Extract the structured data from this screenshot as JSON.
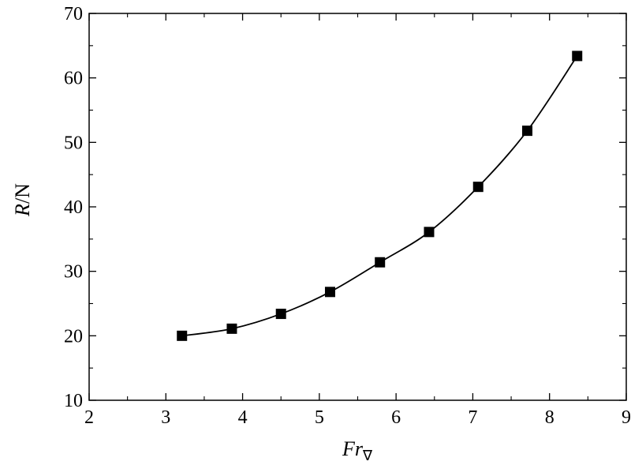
{
  "chart_data": {
    "type": "line",
    "title": "",
    "xlabel": {
      "main": "Fr",
      "subscript": "∇"
    },
    "ylabel": {
      "italic": "R",
      "rest": "/N"
    },
    "xlim": [
      2,
      9
    ],
    "ylim": [
      10,
      70
    ],
    "xticks": [
      "2",
      "3",
      "4",
      "5",
      "6",
      "7",
      "8",
      "9"
    ],
    "yticks": [
      "10",
      "20",
      "30",
      "40",
      "50",
      "60",
      "70"
    ],
    "grid": false,
    "marker": "square",
    "series": [
      {
        "x": [
          3.21,
          3.86,
          4.5,
          5.14,
          5.79,
          6.43,
          7.07,
          7.71,
          8.36
        ],
        "y": [
          20.0,
          21.1,
          23.4,
          26.8,
          31.4,
          36.1,
          43.1,
          51.8,
          63.4
        ]
      }
    ]
  }
}
